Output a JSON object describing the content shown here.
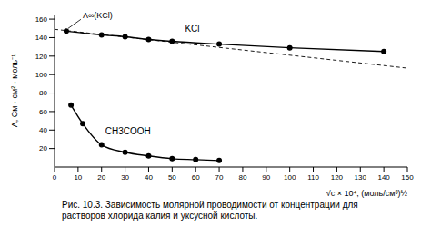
{
  "chart_data": {
    "type": "line",
    "ylabel": "Λ, См · см² · моль⁻¹",
    "xlabel": "√c × 10⁴, (моль/см³)½",
    "xlim": [
      0,
      150
    ],
    "xticks": [
      0,
      10,
      20,
      30,
      40,
      50,
      60,
      70,
      80,
      90,
      100,
      110,
      120,
      130,
      140,
      150
    ],
    "ylim": [
      0,
      165
    ],
    "yticks": [
      20,
      40,
      60,
      80,
      100,
      120,
      140,
      160
    ],
    "grid": false,
    "annotations": [
      "Λ∞(KCl)"
    ],
    "caption": "Рис. 10.3. Зависимость молярной проводимости от концентрации для растворов хлорида калия и уксусной кислоты.",
    "series": [
      {
        "name": "KCl",
        "color": "#000000",
        "marker": "circle",
        "line_style": "solid",
        "x": [
          5,
          20,
          30,
          40,
          50,
          70,
          100,
          140
        ],
        "values": [
          147,
          143,
          141,
          138,
          136,
          133,
          129,
          125
        ]
      },
      {
        "color": "#000000",
        "marker": "none",
        "line_style": "dashed",
        "x": [
          0,
          150
        ],
        "values": [
          149,
          107
        ]
      },
      {
        "name": "CH3COOH",
        "color": "#000000",
        "marker": "circle",
        "line_style": "solid",
        "x": [
          7,
          12,
          20,
          30,
          40,
          50,
          60,
          70
        ],
        "values": [
          67,
          47,
          24,
          16,
          12,
          9,
          8,
          7
        ]
      }
    ]
  }
}
